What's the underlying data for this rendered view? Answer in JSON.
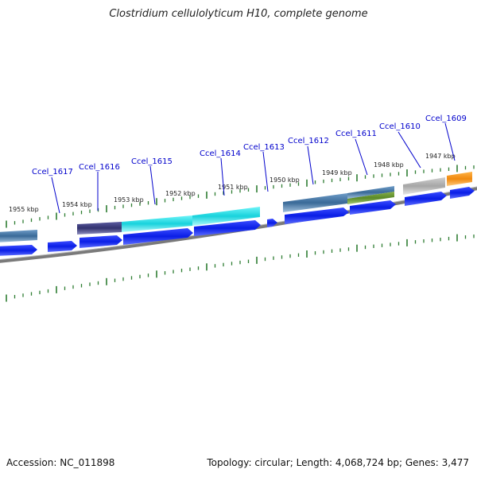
{
  "title": "Clostridium cellulolyticum H10, complete genome",
  "accession_text": "Accession: NC_011898",
  "summary_text": "Topology: circular; Length: 4,068,724 bp; Genes: 3,477",
  "position_labels": [
    "1955 kbp",
    "1954 kbp",
    "1953 kbp",
    "1952 kbp",
    "1951 kbp",
    "1950 kbp",
    "1949 kbp",
    "1948 kbp",
    "1947 kbp"
  ],
  "genes": [
    {
      "name": "Ccel_1617",
      "color": "#1a2ee8"
    },
    {
      "name": "Ccel_1616",
      "color": "#3c3c8c"
    },
    {
      "name": "Ccel_1615",
      "color": "#19d8e0"
    },
    {
      "name": "Ccel_1614",
      "color": "#1a2ee8"
    },
    {
      "name": "Ccel_1613",
      "color": "#1a2ee8"
    },
    {
      "name": "Ccel_1612",
      "color": "#3f6fa0"
    },
    {
      "name": "Ccel_1611",
      "color": "#5a8a2a"
    },
    {
      "name": "Ccel_1610",
      "color": "#aaaaaa"
    },
    {
      "name": "Ccel_1609",
      "color": "#f08a10"
    }
  ],
  "colors": {
    "backbone": "#808080",
    "tick": "#2e7d32",
    "cds_strand": "#0a1ee6",
    "label_line": "#0000cc"
  }
}
